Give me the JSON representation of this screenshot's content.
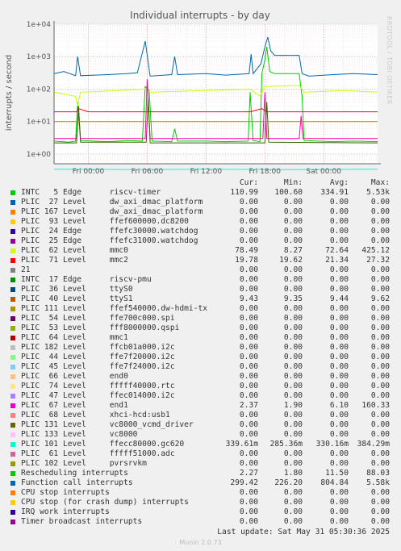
{
  "header": {
    "side_text": "RRDTOOL / TOBI OETIKER"
  },
  "chart_data": {
    "type": "line",
    "title": "Individual interrupts - by day",
    "ylabel": "interrupts / second",
    "yscale": "log",
    "ylim": [
      0.5,
      10000
    ],
    "y_ticks": [
      "1e+00",
      "1e+01",
      "1e+02",
      "1e+03",
      "1e+04"
    ],
    "y_tick_values": [
      1,
      10,
      100,
      1000,
      10000
    ],
    "x_ticks": [
      "Fri 00:00",
      "Fri 06:00",
      "Fri 12:00",
      "Fri 18:00",
      "Sat 00:00"
    ],
    "x_tick_hours": [
      0,
      6,
      12,
      18,
      24
    ],
    "x_range_hours": [
      -3.5,
      29.5
    ],
    "grid": true,
    "series": [
      {
        "name": "INTC 5 Edge riscv-timer",
        "color": "#00cc00",
        "points": [
          [
            -3.5,
            2.5
          ],
          [
            -2,
            2.3
          ],
          [
            -1.3,
            2.5
          ],
          [
            -1.1,
            40
          ],
          [
            -0.8,
            2.6
          ],
          [
            2,
            2.4
          ],
          [
            4,
            2.6
          ],
          [
            5.5,
            2.5
          ],
          [
            5.8,
            120
          ],
          [
            6.2,
            90
          ],
          [
            6.5,
            2.5
          ],
          [
            8.5,
            2.4
          ],
          [
            8.8,
            6
          ],
          [
            9.1,
            2.5
          ],
          [
            12,
            2.5
          ],
          [
            14,
            2.4
          ],
          [
            16.3,
            2.5
          ],
          [
            16.5,
            80
          ],
          [
            16.8,
            2.6
          ],
          [
            17.5,
            2.4
          ],
          [
            17.7,
            300
          ],
          [
            18,
            800
          ],
          [
            18.2,
            2000
          ],
          [
            18.5,
            350
          ],
          [
            19,
            300
          ],
          [
            21.5,
            300
          ],
          [
            21.8,
            60
          ],
          [
            22,
            2.6
          ],
          [
            25,
            2.4
          ],
          [
            27,
            2.5
          ],
          [
            29.5,
            2.4
          ]
        ]
      },
      {
        "name": "PLIC 27 Level dw_axi_dmac_platform",
        "color": "#0066b3",
        "points": [
          [
            -3.5,
            300
          ],
          [
            -2.5,
            350
          ],
          [
            -1.3,
            260
          ],
          [
            -1.1,
            1000
          ],
          [
            -0.8,
            260
          ],
          [
            2,
            280
          ],
          [
            4,
            300
          ],
          [
            5,
            320
          ],
          [
            5.8,
            3000
          ],
          [
            6.3,
            250
          ],
          [
            8.5,
            280
          ],
          [
            8.8,
            1000
          ],
          [
            9.1,
            280
          ],
          [
            12,
            300
          ],
          [
            14,
            270
          ],
          [
            16.4,
            300
          ],
          [
            16.6,
            1200
          ],
          [
            16.8,
            300
          ],
          [
            17.6,
            600
          ],
          [
            18,
            2000
          ],
          [
            18.3,
            4000
          ],
          [
            18.6,
            1500
          ],
          [
            19,
            1100
          ],
          [
            21.5,
            1100
          ],
          [
            21.8,
            300
          ],
          [
            22.5,
            250
          ],
          [
            25,
            280
          ],
          [
            27,
            300
          ],
          [
            29.5,
            280
          ]
        ]
      },
      {
        "name": "PLIC 167 Level dw_axi_dmac_platform",
        "color": "#ff8000",
        "points": []
      },
      {
        "name": "PLIC 93 Level ffef600000.dc8200",
        "color": "#ffcc00",
        "points": []
      },
      {
        "name": "PLIC 24 Edge ffefc30000.watchdog",
        "color": "#330099",
        "points": []
      },
      {
        "name": "PLIC 25 Edge ffefc31000.watchdog",
        "color": "#990099",
        "points": []
      },
      {
        "name": "PLIC 62 Level mmc0",
        "color": "#ccff00",
        "points": [
          [
            -3.5,
            80
          ],
          [
            -1.3,
            60
          ],
          [
            -1.1,
            30
          ],
          [
            -0.8,
            80
          ],
          [
            3,
            90
          ],
          [
            5.8,
            100
          ],
          [
            6.3,
            80
          ],
          [
            12,
            90
          ],
          [
            16.5,
            100
          ],
          [
            17.5,
            60
          ],
          [
            18,
            120
          ],
          [
            21.5,
            130
          ],
          [
            22,
            80
          ],
          [
            26,
            90
          ],
          [
            29.5,
            80
          ]
        ]
      },
      {
        "name": "PLIC 71 Level mmc2",
        "color": "#ff0000",
        "points": [
          [
            -3.5,
            20
          ],
          [
            -1.2,
            20
          ],
          [
            -1,
            25
          ],
          [
            0,
            20
          ],
          [
            6,
            20
          ],
          [
            8.7,
            20
          ],
          [
            16.5,
            20
          ],
          [
            17.7,
            25
          ],
          [
            18.2,
            20
          ],
          [
            29.5,
            20
          ]
        ]
      },
      {
        "name": "PLIC 101 Level ffecc80000.gc620",
        "color": "#00ffcc",
        "points": [
          [
            -3.5,
            0.34
          ],
          [
            5,
            0.33
          ],
          [
            12,
            0.34
          ],
          [
            20,
            0.33
          ],
          [
            29.5,
            0.34
          ]
        ]
      },
      {
        "name": "Function call interrupts",
        "color": "#ff00aa",
        "points": [
          [
            -3.5,
            3
          ],
          [
            -1.2,
            3
          ],
          [
            -1,
            20
          ],
          [
            -0.8,
            3
          ],
          [
            5.8,
            3
          ],
          [
            6,
            200
          ],
          [
            6.3,
            3
          ],
          [
            17.8,
            3
          ],
          [
            18,
            80
          ],
          [
            18.2,
            3
          ],
          [
            21.5,
            3
          ],
          [
            21.7,
            15
          ],
          [
            21.9,
            3
          ],
          [
            29.5,
            3
          ]
        ]
      },
      {
        "name": "Rescheduling interrupts",
        "color": "#336600",
        "points": [
          [
            -3.5,
            2.2
          ],
          [
            -1.2,
            2.2
          ],
          [
            -1,
            30
          ],
          [
            -0.8,
            2.3
          ],
          [
            5.9,
            2.3
          ],
          [
            6.1,
            50
          ],
          [
            6.3,
            2.2
          ],
          [
            18,
            2.2
          ],
          [
            18.2,
            40
          ],
          [
            18.4,
            2.3
          ],
          [
            29.5,
            2.2
          ]
        ]
      },
      {
        "name": "PLIC 111 Level ffef540000.dw-hdmi-tx",
        "color": "#999900",
        "points": [
          [
            -3.5,
            10
          ],
          [
            29.5,
            10
          ]
        ]
      }
    ]
  },
  "legend": {
    "headers": {
      "cur": "Cur:",
      "min": "Min:",
      "avg": "Avg:",
      "max": "Max:"
    },
    "rows": [
      {
        "color": "#00cc00",
        "label": "INTC   5 Edge      riscv-timer",
        "cur": "110.99",
        "min": "100.60",
        "avg": "334.91",
        "max": "5.53k"
      },
      {
        "color": "#0066b3",
        "label": "PLIC  27 Level     dw_axi_dmac_platform",
        "cur": "0.00",
        "min": "0.00",
        "avg": "0.00",
        "max": "0.00"
      },
      {
        "color": "#ff8000",
        "label": "PLIC 167 Level     dw_axi_dmac_platform",
        "cur": "0.00",
        "min": "0.00",
        "avg": "0.00",
        "max": "0.00"
      },
      {
        "color": "#ffcc00",
        "label": "PLIC  93 Level     ffef600000.dc8200",
        "cur": "0.00",
        "min": "0.00",
        "avg": "0.00",
        "max": "0.00"
      },
      {
        "color": "#330099",
        "label": "PLIC  24 Edge      ffefc30000.watchdog",
        "cur": "0.00",
        "min": "0.00",
        "avg": "0.00",
        "max": "0.00"
      },
      {
        "color": "#990099",
        "label": "PLIC  25 Edge      ffefc31000.watchdog",
        "cur": "0.00",
        "min": "0.00",
        "avg": "0.00",
        "max": "0.00"
      },
      {
        "color": "#ccff00",
        "label": "PLIC  62 Level     mmc0",
        "cur": "78.49",
        "min": "8.27",
        "avg": "72.64",
        "max": "425.12"
      },
      {
        "color": "#ff0000",
        "label": "PLIC  71 Level     mmc2",
        "cur": "19.78",
        "min": "19.62",
        "avg": "21.34",
        "max": "27.32"
      },
      {
        "color": "#808080",
        "label": "21",
        "cur": "0.00",
        "min": "0.00",
        "avg": "0.00",
        "max": "0.00"
      },
      {
        "color": "#008f00",
        "label": "INTC  17 Edge      riscv-pmu",
        "cur": "0.00",
        "min": "0.00",
        "avg": "0.00",
        "max": "0.00"
      },
      {
        "color": "#00487d",
        "label": "PLIC  36 Level     ttyS0",
        "cur": "0.00",
        "min": "0.00",
        "avg": "0.00",
        "max": "0.00"
      },
      {
        "color": "#b35a00",
        "label": "PLIC  40 Level     ttyS1",
        "cur": "9.43",
        "min": "9.35",
        "avg": "9.44",
        "max": "9.62"
      },
      {
        "color": "#b38f00",
        "label": "PLIC 111 Level     ffef540000.dw-hdmi-tx",
        "cur": "0.00",
        "min": "0.00",
        "avg": "0.00",
        "max": "0.00"
      },
      {
        "color": "#6b006b",
        "label": "PLIC  54 Level     ffe700c000.spi",
        "cur": "0.00",
        "min": "0.00",
        "avg": "0.00",
        "max": "0.00"
      },
      {
        "color": "#8fb300",
        "label": "PLIC  53 Level     fff8000000.qspi",
        "cur": "0.00",
        "min": "0.00",
        "avg": "0.00",
        "max": "0.00"
      },
      {
        "color": "#b30000",
        "label": "PLIC  64 Level     mmc1",
        "cur": "0.00",
        "min": "0.00",
        "avg": "0.00",
        "max": "0.00"
      },
      {
        "color": "#bebebe",
        "label": "PLIC 182 Level     ffcb01a000.i2c",
        "cur": "0.00",
        "min": "0.00",
        "avg": "0.00",
        "max": "0.00"
      },
      {
        "color": "#80ff80",
        "label": "PLIC  44 Level     ffe7f20000.i2c",
        "cur": "0.00",
        "min": "0.00",
        "avg": "0.00",
        "max": "0.00"
      },
      {
        "color": "#80c9ff",
        "label": "PLIC  45 Level     ffe7f24000.i2c",
        "cur": "0.00",
        "min": "0.00",
        "avg": "0.00",
        "max": "0.00"
      },
      {
        "color": "#ffc080",
        "label": "PLIC  66 Level     end0",
        "cur": "0.00",
        "min": "0.00",
        "avg": "0.00",
        "max": "0.00"
      },
      {
        "color": "#ffe680",
        "label": "PLIC  74 Level     fffff40000.rtc",
        "cur": "0.00",
        "min": "0.00",
        "avg": "0.00",
        "max": "0.00"
      },
      {
        "color": "#aa80ff",
        "label": "PLIC  47 Level     ffec014000.i2c",
        "cur": "0.00",
        "min": "0.00",
        "avg": "0.00",
        "max": "0.00"
      },
      {
        "color": "#ee00cc",
        "label": "PLIC  67 Level     end1",
        "cur": "2.37",
        "min": "1.90",
        "avg": "6.10",
        "max": "160.33"
      },
      {
        "color": "#ff8080",
        "label": "PLIC  68 Level     xhci-hcd:usb1",
        "cur": "0.00",
        "min": "0.00",
        "avg": "0.00",
        "max": "0.00"
      },
      {
        "color": "#666600",
        "label": "PLIC 131 Level     vc8000_vcmd_driver",
        "cur": "0.00",
        "min": "0.00",
        "avg": "0.00",
        "max": "0.00"
      },
      {
        "color": "#ffbfff",
        "label": "PLIC 133 Level     vc8000",
        "cur": "0.00",
        "min": "0.00",
        "avg": "0.00",
        "max": "0.00"
      },
      {
        "color": "#00ffcc",
        "label": "PLIC 101 Level     ffecc80000.gc620",
        "cur": "339.61m",
        "min": "285.36m",
        "avg": "330.16m",
        "max": "384.29m"
      },
      {
        "color": "#cc6699",
        "label": "PLIC  61 Level     fffff51000.adc",
        "cur": "0.00",
        "min": "0.00",
        "avg": "0.00",
        "max": "0.00"
      },
      {
        "color": "#999900",
        "label": "PLIC 102 Level     pvrsrvkm",
        "cur": "0.00",
        "min": "0.00",
        "avg": "0.00",
        "max": "0.00"
      },
      {
        "color": "#00cc00",
        "label": "Rescheduling interrupts",
        "cur": "2.27",
        "min": "1.80",
        "avg": "11.50",
        "max": "88.03"
      },
      {
        "color": "#0066b3",
        "label": "Function call interrupts",
        "cur": "299.42",
        "min": "226.20",
        "avg": "804.84",
        "max": "5.58k"
      },
      {
        "color": "#ff8000",
        "label": "CPU stop interrupts",
        "cur": "0.00",
        "min": "0.00",
        "avg": "0.00",
        "max": "0.00"
      },
      {
        "color": "#ffcc00",
        "label": "CPU stop (for crash dump) interrupts",
        "cur": "0.00",
        "min": "0.00",
        "avg": "0.00",
        "max": "0.00"
      },
      {
        "color": "#330099",
        "label": "IRQ work interrupts",
        "cur": "0.00",
        "min": "0.00",
        "avg": "0.00",
        "max": "0.00"
      },
      {
        "color": "#990099",
        "label": "Timer broadcast interrupts",
        "cur": "0.00",
        "min": "0.00",
        "avg": "0.00",
        "max": "0.00"
      }
    ]
  },
  "footer": {
    "last_update": "Last update: Sat May 31 05:30:36 2025",
    "version": "Munin 2.0.73"
  }
}
